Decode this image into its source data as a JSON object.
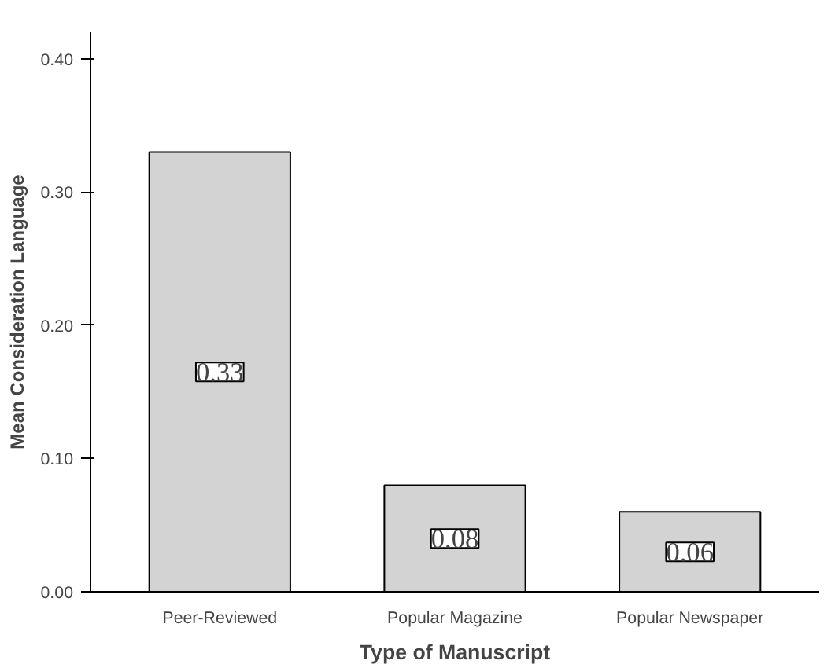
{
  "chart_data": {
    "type": "bar",
    "xlabel": "Type of Manuscript",
    "ylabel": "Mean Consideration Language",
    "categories": [
      "Peer-Reviewed",
      "Popular Magazine",
      "Popular Newspaper"
    ],
    "values": [
      0.33,
      0.08,
      0.06
    ],
    "color": "#d3d3d3",
    "ylim": [
      0,
      0.42
    ],
    "yticks": [
      {
        "value": 0,
        "label": "0.00"
      },
      {
        "value": 0.1,
        "label": "0.10"
      },
      {
        "value": 0.2,
        "label": "0.20"
      },
      {
        "value": 0.3,
        "label": "0.30"
      },
      {
        "value": 0.4,
        "label": "0.40"
      }
    ],
    "data_labels": true,
    "grid": false
  }
}
